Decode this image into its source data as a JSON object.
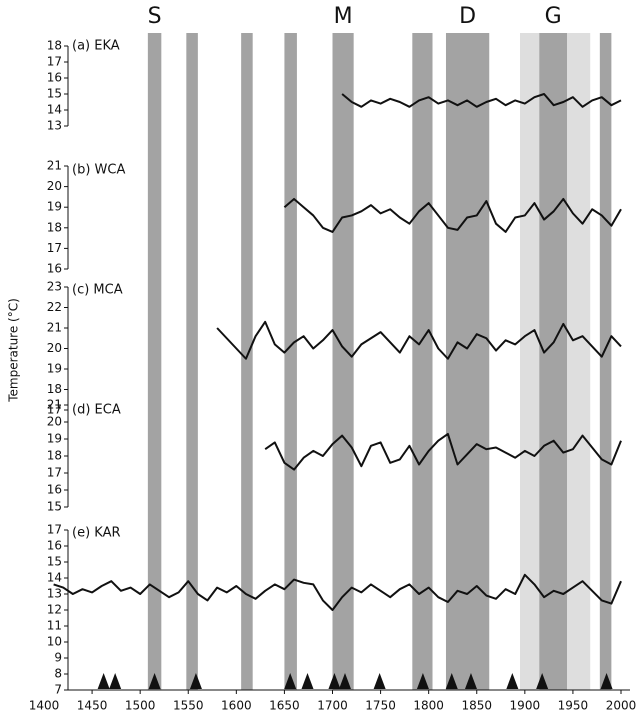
{
  "figure": {
    "y_label": "Temperature (°C)",
    "xlim": [
      1400,
      2000
    ],
    "xticks": [
      1400,
      1450,
      1500,
      1550,
      1600,
      1650,
      1700,
      1750,
      1800,
      1850,
      1900,
      1950,
      2000
    ],
    "bands": [
      {
        "start": 1508,
        "end": 1522,
        "color": "#a3a3a3",
        "label": "S"
      },
      {
        "start": 1548,
        "end": 1560,
        "color": "#a3a3a3"
      },
      {
        "start": 1605,
        "end": 1617,
        "color": "#a3a3a3"
      },
      {
        "start": 1650,
        "end": 1663,
        "color": "#a3a3a3"
      },
      {
        "start": 1700,
        "end": 1722,
        "color": "#a3a3a3",
        "label": "M"
      },
      {
        "start": 1783,
        "end": 1804,
        "color": "#a3a3a3"
      },
      {
        "start": 1818,
        "end": 1863,
        "color": "#a3a3a3",
        "label": "D"
      },
      {
        "start": 1895,
        "end": 1915,
        "color": "#dedede"
      },
      {
        "start": 1915,
        "end": 1944,
        "color": "#a3a3a3",
        "label": "G"
      },
      {
        "start": 1944,
        "end": 1968,
        "color": "#dedede"
      },
      {
        "start": 1978,
        "end": 1990,
        "color": "#a3a3a3"
      }
    ],
    "eruptions": [
      1462,
      1474,
      1515,
      1558,
      1656,
      1674,
      1702,
      1713,
      1749,
      1794,
      1824,
      1844,
      1887,
      1918,
      1985
    ]
  },
  "chart_data": [
    {
      "type": "line",
      "title": "(a) EKA",
      "ylim": [
        13,
        18
      ],
      "yticks": [
        13,
        14,
        15,
        16,
        17,
        18
      ],
      "x": [
        1710,
        1720,
        1730,
        1740,
        1750,
        1760,
        1770,
        1780,
        1790,
        1800,
        1810,
        1820,
        1830,
        1840,
        1850,
        1860,
        1870,
        1880,
        1890,
        1900,
        1910,
        1920,
        1930,
        1940,
        1950,
        1960,
        1970,
        1980,
        1990,
        2000
      ],
      "series": [
        {
          "color": "#111111",
          "values": [
            15.0,
            14.5,
            14.2,
            14.6,
            14.4,
            14.7,
            14.5,
            14.2,
            14.6,
            14.8,
            14.4,
            14.6,
            14.3,
            14.6,
            14.2,
            14.5,
            14.7,
            14.3,
            14.6,
            14.4,
            14.8,
            15.0,
            14.3,
            14.5,
            14.8,
            14.2,
            14.6,
            14.8,
            14.3,
            14.6
          ]
        }
      ]
    },
    {
      "type": "line",
      "title": "(b) WCA",
      "ylim": [
        16,
        21
      ],
      "yticks": [
        16,
        17,
        18,
        19,
        20,
        21
      ],
      "x": [
        1650,
        1660,
        1670,
        1680,
        1690,
        1700,
        1710,
        1720,
        1730,
        1740,
        1750,
        1760,
        1770,
        1780,
        1790,
        1800,
        1810,
        1820,
        1830,
        1840,
        1850,
        1860,
        1870,
        1880,
        1890,
        1900,
        1910,
        1920,
        1930,
        1940,
        1950,
        1960,
        1970,
        1980,
        1990,
        2000
      ],
      "series": [
        {
          "color": "#111111",
          "values": [
            19.0,
            19.4,
            19.0,
            18.6,
            18.0,
            17.8,
            18.5,
            18.6,
            18.8,
            19.1,
            18.7,
            18.9,
            18.5,
            18.2,
            18.8,
            19.2,
            18.6,
            18.0,
            17.9,
            18.5,
            18.6,
            19.3,
            18.2,
            17.8,
            18.5,
            18.6,
            19.2,
            18.4,
            18.8,
            19.4,
            18.7,
            18.2,
            18.9,
            18.6,
            18.1,
            18.9
          ]
        }
      ]
    },
    {
      "type": "line",
      "title": "(c) MCA",
      "ylim": [
        17,
        23
      ],
      "yticks": [
        17,
        18,
        19,
        20,
        21,
        22,
        23
      ],
      "x": [
        1580,
        1590,
        1600,
        1610,
        1620,
        1630,
        1640,
        1650,
        1660,
        1670,
        1680,
        1690,
        1700,
        1710,
        1720,
        1730,
        1740,
        1750,
        1760,
        1770,
        1780,
        1790,
        1800,
        1810,
        1820,
        1830,
        1840,
        1850,
        1860,
        1870,
        1880,
        1890,
        1900,
        1910,
        1920,
        1930,
        1940,
        1950,
        1960,
        1970,
        1980,
        1990,
        2000
      ],
      "series": [
        {
          "color": "#111111",
          "values": [
            21.0,
            20.5,
            20.0,
            19.5,
            20.6,
            21.3,
            20.2,
            19.8,
            20.3,
            20.6,
            20.0,
            20.4,
            20.9,
            20.1,
            19.6,
            20.2,
            20.5,
            20.8,
            20.3,
            19.8,
            20.6,
            20.2,
            20.9,
            20.0,
            19.5,
            20.3,
            20.0,
            20.7,
            20.5,
            19.9,
            20.4,
            20.2,
            20.6,
            20.9,
            19.8,
            20.3,
            21.2,
            20.4,
            20.6,
            20.1,
            19.6,
            20.6,
            20.1
          ]
        }
      ]
    },
    {
      "type": "line",
      "title": "(d) ECA",
      "ylim": [
        15,
        21
      ],
      "yticks": [
        15,
        16,
        17,
        18,
        19,
        20,
        21
      ],
      "x": [
        1630,
        1640,
        1650,
        1660,
        1670,
        1680,
        1690,
        1700,
        1710,
        1720,
        1730,
        1740,
        1750,
        1760,
        1770,
        1780,
        1790,
        1800,
        1810,
        1820,
        1830,
        1840,
        1850,
        1860,
        1870,
        1880,
        1890,
        1900,
        1910,
        1920,
        1930,
        1940,
        1950,
        1960,
        1970,
        1980,
        1990,
        2000
      ],
      "series": [
        {
          "color": "#111111",
          "values": [
            18.4,
            18.8,
            17.6,
            17.2,
            17.9,
            18.3,
            18.0,
            18.7,
            19.2,
            18.5,
            17.4,
            18.6,
            18.8,
            17.6,
            17.8,
            18.6,
            17.5,
            18.3,
            18.9,
            19.3,
            17.5,
            18.1,
            18.7,
            18.4,
            18.5,
            18.2,
            17.9,
            18.3,
            18.0,
            18.6,
            18.9,
            18.2,
            18.4,
            19.2,
            18.5,
            17.8,
            17.5,
            18.9
          ]
        }
      ]
    },
    {
      "type": "line",
      "title": "(e) KAR",
      "ylim": [
        7,
        17
      ],
      "yticks": [
        7,
        8,
        9,
        10,
        11,
        12,
        13,
        14,
        15,
        16,
        17
      ],
      "x": [
        1410,
        1420,
        1430,
        1440,
        1450,
        1460,
        1470,
        1480,
        1490,
        1500,
        1510,
        1520,
        1530,
        1540,
        1550,
        1560,
        1570,
        1580,
        1590,
        1600,
        1610,
        1620,
        1630,
        1640,
        1650,
        1660,
        1670,
        1680,
        1690,
        1700,
        1710,
        1720,
        1730,
        1740,
        1750,
        1760,
        1770,
        1780,
        1790,
        1800,
        1810,
        1820,
        1830,
        1840,
        1850,
        1860,
        1870,
        1880,
        1890,
        1900,
        1910,
        1920,
        1930,
        1940,
        1950,
        1960,
        1970,
        1980,
        1990,
        2000
      ],
      "series": [
        {
          "color": "#111111",
          "values": [
            13.6,
            13.4,
            13.0,
            13.3,
            13.1,
            13.5,
            13.8,
            13.2,
            13.4,
            13.0,
            13.6,
            13.2,
            12.8,
            13.1,
            13.8,
            13.0,
            12.6,
            13.4,
            13.1,
            13.5,
            13.0,
            12.7,
            13.2,
            13.6,
            13.3,
            13.9,
            13.7,
            13.6,
            12.6,
            12.0,
            12.8,
            13.4,
            13.1,
            13.6,
            13.2,
            12.8,
            13.3,
            13.6,
            13.0,
            13.4,
            12.8,
            12.5,
            13.2,
            13.0,
            13.5,
            12.9,
            12.7,
            13.3,
            13.0,
            14.2,
            13.6,
            12.8,
            13.2,
            13.0,
            13.4,
            13.8,
            13.2,
            12.6,
            12.4,
            13.8
          ]
        }
      ]
    }
  ]
}
